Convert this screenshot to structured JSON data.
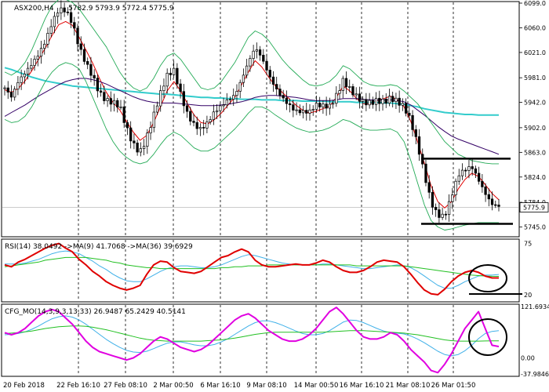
{
  "header": {
    "symbol": "ASX200,H4",
    "quote": "5782.9 5793.9 5772.4 5775.9"
  },
  "colors": {
    "price": "#000000",
    "rsi": "#e00000",
    "rsi_ma9": "#3fb0e8",
    "rsi_ma36": "#22c022",
    "cfg": "#e000e0",
    "cfg_line2": "#3fb0e8",
    "cfg_line3": "#22c022",
    "ma_red": "#e00000",
    "ma_cyan": "#33cccc",
    "ma_purple": "#330066",
    "bollinger": "#22aa55",
    "annotation": "#000000"
  },
  "chart_data": [
    {
      "type": "candlestick",
      "title": "ASX200,H4",
      "values_label": "5782.9 5793.9 5772.4 5775.9",
      "current_price_label": "5775.9",
      "ylim": [
        5732,
        6099
      ],
      "y_ticks": [
        "6099.0",
        "6060.0",
        "6021.0",
        "5981.0",
        "5942.0",
        "5902.0",
        "5863.0",
        "5824.0",
        "5784.0",
        "5745.0"
      ],
      "x_tick_labels": [
        "20 Feb 2018",
        "22 Feb 16:10",
        "27 Feb 08:10",
        "2 Mar 00:50",
        "6 Mar 16:10",
        "9 Mar 08:10",
        "14 Mar 00:50",
        "16 Mar 16:10",
        "21 Mar 08:10",
        "26 Mar 01:50"
      ],
      "close_path": [
        5965,
        5945,
        5968,
        5985,
        6005,
        6025,
        6045,
        6070,
        6085,
        6080,
        6062,
        6030,
        6010,
        5990,
        5960,
        5942,
        5935,
        5930,
        5900,
        5880,
        5870,
        5892,
        5920,
        5950,
        5978,
        5990,
        5958,
        5930,
        5912,
        5900,
        5905,
        5920,
        5932,
        5948,
        5960,
        5985,
        6008,
        6025,
        6005,
        5980,
        5965,
        5955,
        5945,
        5932,
        5925,
        5920,
        5932,
        5935,
        5940,
        5960,
        5982,
        5962,
        5945,
        5935,
        5938,
        5948,
        5950,
        5955,
        5945,
        5930,
        5905,
        5870,
        5830,
        5790,
        5770,
        5765,
        5790,
        5820,
        5830,
        5840,
        5825,
        5805,
        5785,
        5776
      ],
      "series": [
        {
          "name": "MA red",
          "values": [
            5962,
            5958,
            5964,
            5976,
            5992,
            6010,
            6028,
            6048,
            6065,
            6070,
            6064,
            6045,
            6025,
            6004,
            5980,
            5958,
            5942,
            5930,
            5912,
            5895,
            5882,
            5890,
            5910,
            5935,
            5960,
            5975,
            5960,
            5940,
            5922,
            5910,
            5908,
            5915,
            5925,
            5938,
            5950,
            5970,
            5990,
            6008,
            5998,
            5982,
            5968,
            5958,
            5948,
            5938,
            5930,
            5925,
            5928,
            5932,
            5936,
            5950,
            5968,
            5960,
            5948,
            5940,
            5940,
            5945,
            5948,
            5952,
            5946,
            5935,
            5912,
            5880,
            5846,
            5810,
            5785,
            5775,
            5785,
            5805,
            5820,
            5830,
            5825,
            5812,
            5798,
            5788
          ]
        },
        {
          "name": "MA cyan",
          "values": [
            5997,
            5994,
            5990,
            5986,
            5982,
            5979,
            5976,
            5974,
            5972,
            5970,
            5968,
            5967,
            5966,
            5965,
            5964,
            5963,
            5962,
            5961,
            5960,
            5959,
            5958,
            5957,
            5956,
            5955,
            5955,
            5954,
            5953,
            5952,
            5951,
            5950,
            5950,
            5949,
            5949,
            5948,
            5948,
            5947,
            5947,
            5947,
            5946,
            5946,
            5946,
            5945,
            5945,
            5945,
            5944,
            5944,
            5944,
            5944,
            5943,
            5943,
            5943,
            5943,
            5942,
            5942,
            5942,
            5942,
            5941,
            5941,
            5940,
            5939,
            5937,
            5935,
            5932,
            5930,
            5928,
            5926,
            5925,
            5924,
            5923,
            5923,
            5922,
            5922,
            5922,
            5922
          ]
        },
        {
          "name": "MA purple",
          "values": [
            5920,
            5926,
            5932,
            5938,
            5945,
            5952,
            5958,
            5964,
            5970,
            5975,
            5978,
            5980,
            5980,
            5978,
            5975,
            5971,
            5966,
            5961,
            5956,
            5951,
            5947,
            5944,
            5942,
            5941,
            5941,
            5941,
            5940,
            5939,
            5938,
            5937,
            5937,
            5937,
            5938,
            5939,
            5941,
            5943,
            5946,
            5950,
            5952,
            5953,
            5953,
            5952,
            5951,
            5950,
            5948,
            5946,
            5945,
            5945,
            5945,
            5946,
            5948,
            5948,
            5948,
            5947,
            5946,
            5946,
            5946,
            5946,
            5945,
            5943,
            5938,
            5930,
            5922,
            5913,
            5904,
            5896,
            5889,
            5884,
            5880,
            5876,
            5872,
            5868,
            5864,
            5860
          ]
        },
        {
          "name": "BB upper",
          "values": [
            5990,
            5985,
            5992,
            6005,
            6025,
            6050,
            6075,
            6095,
            6105,
            6105,
            6100,
            6090,
            6075,
            6060,
            6045,
            6030,
            6010,
            5990,
            5975,
            5965,
            5960,
            5965,
            5980,
            6000,
            6015,
            6020,
            6010,
            5995,
            5980,
            5965,
            5962,
            5965,
            5975,
            5990,
            6005,
            6025,
            6045,
            6055,
            6050,
            6040,
            6025,
            6010,
            5998,
            5988,
            5978,
            5970,
            5968,
            5970,
            5975,
            5985,
            6000,
            5995,
            5985,
            5975,
            5970,
            5968,
            5968,
            5970,
            5968,
            5960,
            5950,
            5940,
            5925,
            5910,
            5895,
            5880,
            5870,
            5860,
            5855,
            5850,
            5848,
            5846,
            5845,
            5845
          ]
        },
        {
          "name": "BB lower",
          "values": [
            5915,
            5910,
            5912,
            5920,
            5935,
            5955,
            5975,
            5990,
            6000,
            6005,
            6002,
            5995,
            5975,
            5950,
            5925,
            5900,
            5880,
            5865,
            5855,
            5848,
            5845,
            5848,
            5860,
            5875,
            5888,
            5895,
            5890,
            5880,
            5870,
            5865,
            5865,
            5870,
            5880,
            5890,
            5900,
            5912,
            5925,
            5935,
            5935,
            5930,
            5922,
            5915,
            5908,
            5902,
            5898,
            5895,
            5896,
            5898,
            5902,
            5908,
            5915,
            5912,
            5906,
            5900,
            5898,
            5898,
            5899,
            5900,
            5895,
            5880,
            5850,
            5815,
            5780,
            5755,
            5745,
            5740,
            5742,
            5745,
            5748,
            5750,
            5752,
            5752,
            5752,
            5752
          ]
        }
      ],
      "support_resistance": [
        5853,
        5750
      ]
    },
    {
      "type": "line",
      "title": "RSI(14) 38.0492 ->MA(9) 41.7068 ->MA(36) 39.6929",
      "ylim": [
        14,
        78
      ],
      "y_ticks": [
        "75",
        "20"
      ],
      "series": [
        {
          "name": "RSI(14)",
          "values": [
            52,
            50,
            55,
            58,
            62,
            66,
            70,
            73,
            75,
            70,
            66,
            58,
            52,
            45,
            40,
            34,
            30,
            27,
            25,
            27,
            30,
            42,
            52,
            56,
            55,
            49,
            45,
            44,
            43,
            45,
            50,
            55,
            60,
            62,
            66,
            69,
            66,
            57,
            52,
            50,
            50,
            51,
            52,
            53,
            52,
            52,
            54,
            57,
            55,
            50,
            46,
            44,
            44,
            46,
            50,
            55,
            57,
            56,
            55,
            50,
            42,
            33,
            25,
            21,
            20,
            26,
            34,
            40,
            44,
            46,
            44,
            40,
            38,
            38
          ]
        },
        {
          "name": "MA(9)",
          "values": [
            53,
            53,
            53,
            54,
            56,
            58,
            61,
            64,
            66,
            67,
            66,
            64,
            60,
            56,
            51,
            47,
            42,
            38,
            35,
            34,
            34,
            37,
            41,
            45,
            48,
            50,
            51,
            51,
            50,
            49,
            49,
            50,
            52,
            55,
            58,
            61,
            63,
            62,
            60,
            58,
            56,
            54,
            53,
            52,
            52,
            52,
            52,
            53,
            53,
            52,
            51,
            50,
            49,
            48,
            48,
            49,
            50,
            51,
            52,
            51,
            49,
            45,
            40,
            35,
            30,
            27,
            27,
            30,
            34,
            37,
            40,
            41,
            41,
            41.7
          ]
        },
        {
          "name": "MA(36)",
          "values": [
            50,
            51,
            52,
            53,
            54,
            55,
            57,
            58,
            59,
            60,
            60,
            60,
            60,
            59,
            58,
            57,
            55,
            54,
            52,
            51,
            50,
            49,
            49,
            48,
            48,
            48,
            48,
            48,
            48,
            48,
            48,
            48,
            49,
            49,
            50,
            50,
            51,
            51,
            51,
            52,
            52,
            52,
            52,
            52,
            52,
            52,
            52,
            52,
            52,
            52,
            52,
            52,
            51,
            51,
            51,
            51,
            51,
            51,
            51,
            51,
            50,
            49,
            48,
            47,
            46,
            45,
            44,
            43,
            42,
            41,
            40.5,
            40,
            39.8,
            39.7
          ]
        }
      ]
    },
    {
      "type": "line",
      "title": "CFG_MO(14,3,9,3,13,33) 26.9487 65.2429 40.5141",
      "ylim": [
        -40,
        124
      ],
      "y_ticks": [
        "121.6934",
        "0.00",
        "-37.9846"
      ],
      "series": [
        {
          "name": "CFG_MO line 1",
          "values": [
            60,
            55,
            60,
            70,
            85,
            100,
            110,
            115,
            110,
            95,
            80,
            60,
            40,
            25,
            15,
            10,
            5,
            0,
            -5,
            0,
            10,
            25,
            40,
            50,
            45,
            35,
            25,
            20,
            15,
            20,
            30,
            45,
            60,
            75,
            90,
            100,
            105,
            95,
            80,
            65,
            55,
            45,
            40,
            40,
            45,
            55,
            70,
            90,
            110,
            120,
            105,
            85,
            65,
            50,
            45,
            45,
            50,
            60,
            55,
            40,
            20,
            5,
            -10,
            -30,
            -35,
            -15,
            10,
            40,
            70,
            90,
            110,
            70,
            30,
            27
          ]
        },
        {
          "name": "CFG_MO line 2",
          "values": [
            55,
            56,
            58,
            62,
            68,
            76,
            85,
            93,
            98,
            100,
            97,
            90,
            80,
            68,
            56,
            44,
            34,
            25,
            18,
            14,
            13,
            16,
            22,
            29,
            35,
            38,
            38,
            35,
            31,
            29,
            29,
            32,
            38,
            46,
            56,
            66,
            76,
            84,
            88,
            88,
            84,
            78,
            71,
            64,
            58,
            55,
            55,
            58,
            65,
            75,
            85,
            90,
            89,
            84,
            77,
            70,
            64,
            60,
            59,
            57,
            52,
            45,
            36,
            26,
            16,
            8,
            5,
            8,
            17,
            30,
            46,
            58,
            63,
            65
          ]
        },
        {
          "name": "CFG_MO line 3",
          "values": [
            58,
            59,
            60,
            62,
            64,
            67,
            70,
            72,
            74,
            75,
            76,
            76,
            75,
            73,
            70,
            67,
            63,
            59,
            55,
            51,
            47,
            44,
            42,
            41,
            40,
            40,
            40,
            40,
            40,
            40,
            41,
            42,
            43,
            45,
            47,
            50,
            53,
            56,
            58,
            60,
            61,
            61,
            61,
            61,
            61,
            61,
            61,
            61,
            62,
            63,
            64,
            65,
            65,
            65,
            64,
            63,
            62,
            61,
            60,
            59,
            57,
            55,
            52,
            49,
            46,
            43,
            41,
            40,
            40,
            40,
            40,
            40.3,
            40.5,
            40.5
          ]
        }
      ]
    }
  ]
}
